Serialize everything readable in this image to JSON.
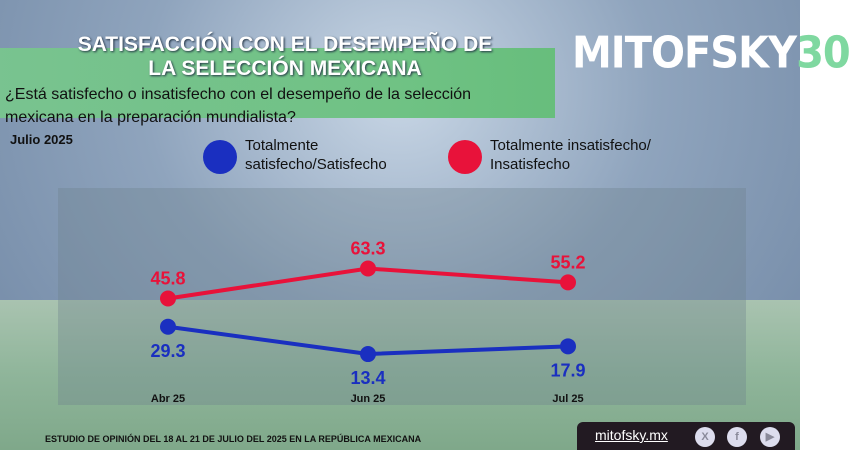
{
  "header": {
    "title_line1": "SATISFACCIÓN CON EL DESEMPEÑO DE",
    "title_line2": "LA SELECCIÓN MEXICANA",
    "logo": "MITOFSKY30",
    "question": "¿Está satisfecho o insatisfecho con el desempeño de la selección mexicana en la preparación mundialista?",
    "date": "Julio 2025"
  },
  "chart_data": {
    "type": "line",
    "categories": [
      "Abr 25",
      "Jun 25",
      "Jul 25"
    ],
    "series": [
      {
        "name": "Totalmente satisfecho/Satisfecho",
        "color": "#1a2fc0",
        "values": [
          29.3,
          13.4,
          17.9
        ]
      },
      {
        "name": "Totalmente insatisfecho/ Insatisfecho",
        "color": "#e8123a",
        "values": [
          45.8,
          63.3,
          55.2
        ]
      }
    ],
    "legend_placement": "top",
    "grid": false
  },
  "legend": {
    "series0_line1": "Totalmente",
    "series0_line2": "satisfecho/Satisfecho",
    "series1_line1": "Totalmente insatisfecho/",
    "series1_line2": "Insatisfecho"
  },
  "footer": {
    "study": "ESTUDIO DE OPINIÓN DEL 18 AL 21 DE JULIO DEL 2025 EN LA REPÚBLICA MEXICANA",
    "website": "mitofsky.mx",
    "social": [
      {
        "icon": "x-icon",
        "glyph": "X"
      },
      {
        "icon": "facebook-icon",
        "glyph": "f"
      },
      {
        "icon": "youtube-icon",
        "glyph": "▶"
      }
    ]
  }
}
